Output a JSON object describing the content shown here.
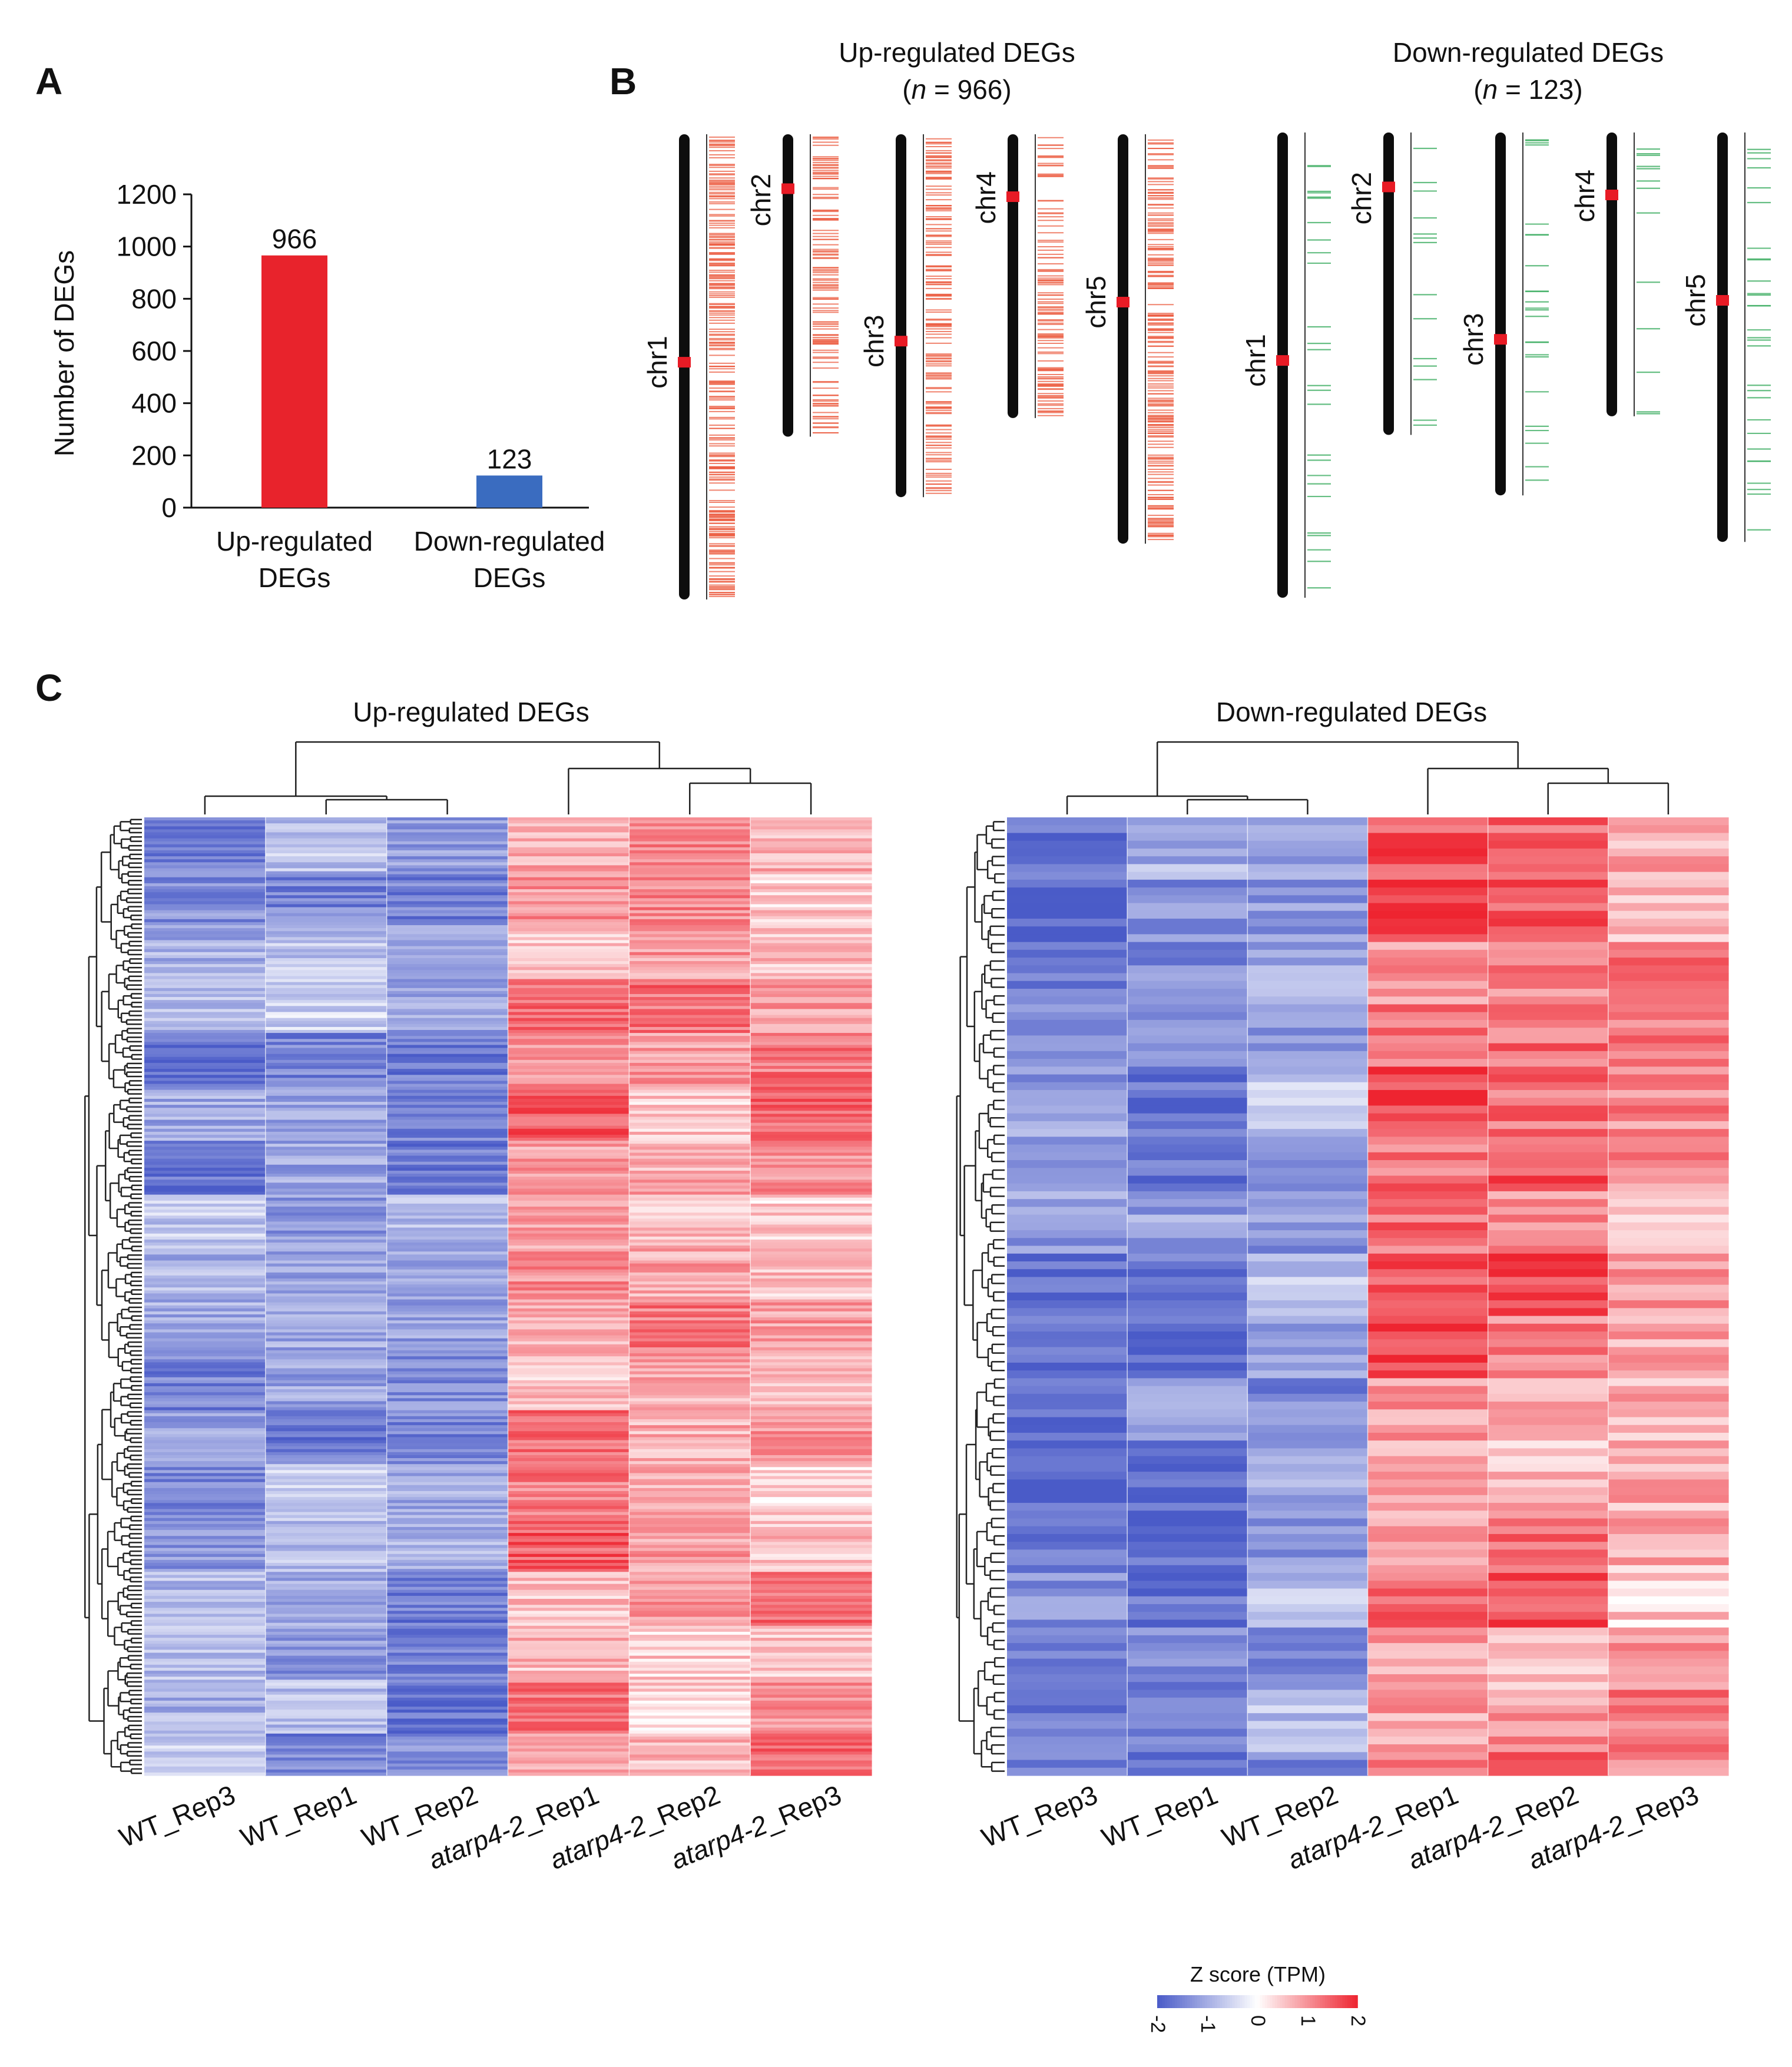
{
  "panel_labels": {
    "a": "A",
    "b": "B",
    "c": "C"
  },
  "colors": {
    "up": "#e8232c",
    "down": "#3a6cc0",
    "chrom": "#0d0d0d",
    "centromere": "#e81b25",
    "up_tick": "#ec5a3e",
    "down_tick": "#3fae63",
    "hm_low": "#4a5bc8",
    "hm_mid": "#ffffff",
    "hm_high": "#ee2430"
  },
  "chart_data": [
    {
      "type": "bar",
      "panel": "A",
      "categories": [
        "Up-regulated DEGs",
        "Down-regulated DEGs"
      ],
      "category_lines": [
        [
          "Up-regulated",
          "DEGs"
        ],
        [
          "Down-regulated",
          "DEGs"
        ]
      ],
      "values": [
        966,
        123
      ],
      "data_labels": [
        "966",
        "123"
      ],
      "ylabel": "Number of DEGs",
      "ylim": [
        0,
        1200
      ],
      "yticks": [
        0,
        200,
        400,
        600,
        800,
        1000,
        1200
      ],
      "ytick_labels": [
        "0",
        "200",
        "400",
        "600",
        "800",
        "1000",
        "1200"
      ],
      "bar_colors": [
        "#e8232c",
        "#3a6cc0"
      ]
    },
    {
      "type": "other",
      "panel": "B",
      "groups": [
        {
          "title": "Up-regulated DEGs",
          "n_prefix": "(",
          "n_symbol": "n",
          "n_text": " = 966)",
          "color": "#ec5a3e",
          "chromosomes": [
            {
              "name": "chr1",
              "length": 1.0,
              "centromere": 0.49
            },
            {
              "name": "chr2",
              "length": 0.65,
              "centromere": 0.18
            },
            {
              "name": "chr3",
              "length": 0.78,
              "centromere": 0.57
            },
            {
              "name": "chr4",
              "length": 0.61,
              "centromere": 0.22
            },
            {
              "name": "chr5",
              "length": 0.88,
              "centromere": 0.41
            }
          ]
        },
        {
          "title": "Down-regulated DEGs",
          "n_prefix": "(",
          "n_symbol": "n",
          "n_text": " = 123)",
          "color": "#3fae63",
          "chromosomes": [
            {
              "name": "chr1",
              "length": 1.0,
              "centromere": 0.49
            },
            {
              "name": "chr2",
              "length": 0.65,
              "centromere": 0.18
            },
            {
              "name": "chr3",
              "length": 0.78,
              "centromere": 0.57
            },
            {
              "name": "chr4",
              "length": 0.61,
              "centromere": 0.22
            },
            {
              "name": "chr5",
              "length": 0.88,
              "centromere": 0.41
            }
          ]
        }
      ]
    },
    {
      "type": "heatmap",
      "panel": "C",
      "maps": [
        {
          "title": "Up-regulated DEGs",
          "columns": [
            "WT_Rep3",
            "WT_Rep1",
            "WT_Rep2",
            "atarp4-2_Rep1",
            "atarp4-2_Rep2",
            "atarp4-2_Rep3"
          ],
          "column_prefixes": [
            "WT",
            "WT",
            "WT",
            "atarp4-2",
            "atarp4-2",
            "atarp4-2"
          ],
          "column_suffixes": [
            "_Rep3",
            "_Rep1",
            "_Rep2",
            "_Rep1",
            "_Rep2",
            "_Rep3"
          ],
          "column_italic": [
            false,
            false,
            false,
            true,
            true,
            true
          ],
          "rows": 966,
          "seed": 17,
          "column_mean_z": [
            -1.2,
            -1.1,
            -1.2,
            1.0,
            0.8,
            0.9
          ]
        },
        {
          "title": "Down-regulated DEGs",
          "columns": [
            "WT_Rep3",
            "WT_Rep1",
            "WT_Rep2",
            "atarp4-2_Rep1",
            "atarp4-2_Rep2",
            "atarp4-2_Rep3"
          ],
          "column_prefixes": [
            "WT",
            "WT",
            "WT",
            "atarp4-2",
            "atarp4-2",
            "atarp4-2"
          ],
          "column_suffixes": [
            "_Rep3",
            "_Rep1",
            "_Rep2",
            "_Rep1",
            "_Rep2",
            "_Rep3"
          ],
          "column_italic": [
            false,
            false,
            false,
            true,
            true,
            true
          ],
          "rows": 123,
          "seed": 29,
          "column_mean_z": [
            -1.5,
            -1.4,
            -1.2,
            1.3,
            1.1,
            1.0
          ]
        }
      ],
      "colorbar": {
        "title": "Z score (TPM)",
        "range": [
          -2,
          2
        ],
        "ticks": [
          -2,
          -1,
          0,
          1,
          2
        ],
        "tick_labels": [
          "-2",
          "-1",
          "0",
          "1",
          "2"
        ]
      }
    }
  ]
}
